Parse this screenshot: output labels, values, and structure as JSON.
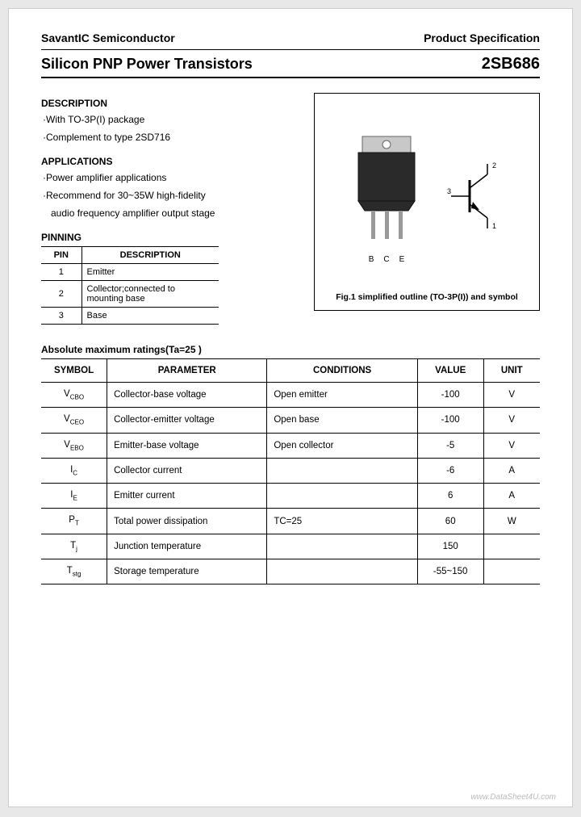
{
  "header": {
    "company": "SavantIC Semiconductor",
    "spec": "Product Specification"
  },
  "title": {
    "left": "Silicon PNP Power Transistors",
    "right": "2SB686"
  },
  "description": {
    "heading": "DESCRIPTION",
    "items": [
      "·With TO-3P(I) package",
      "·Complement to type 2SD716"
    ]
  },
  "applications": {
    "heading": "APPLICATIONS",
    "items": [
      "·Power amplifier applications",
      "·Recommend for 30~35W high-fidelity",
      "audio frequency amplifier output stage"
    ]
  },
  "pinning": {
    "heading": "PINNING",
    "col_pin": "PIN",
    "col_desc": "DESCRIPTION",
    "rows": [
      {
        "pin": "1",
        "desc": "Emitter"
      },
      {
        "pin": "2",
        "desc": "Collector;connected to mounting base"
      },
      {
        "pin": "3",
        "desc": "Base"
      }
    ]
  },
  "figure": {
    "pins": {
      "b": "B",
      "c": "C",
      "e": "E"
    },
    "sym": {
      "n1": "1",
      "n2": "2",
      "n3": "3"
    },
    "caption": "Fig.1 simplified outline (TO-3P(I)) and symbol"
  },
  "ratings": {
    "heading": "Absolute maximum ratings(Ta=25 )",
    "columns": {
      "symbol": "SYMBOL",
      "parameter": "PARAMETER",
      "conditions": "CONDITIONS",
      "value": "VALUE",
      "unit": "UNIT"
    },
    "rows": [
      {
        "sym": "V",
        "sub": "CBO",
        "param": "Collector-base voltage",
        "cond": "Open emitter",
        "val": "-100",
        "unit": "V"
      },
      {
        "sym": "V",
        "sub": "CEO",
        "param": "Collector-emitter voltage",
        "cond": "Open base",
        "val": "-100",
        "unit": "V"
      },
      {
        "sym": "V",
        "sub": "EBO",
        "param": "Emitter-base voltage",
        "cond": "Open collector",
        "val": "-5",
        "unit": "V"
      },
      {
        "sym": "I",
        "sub": "C",
        "param": "Collector current",
        "cond": "",
        "val": "-6",
        "unit": "A"
      },
      {
        "sym": "I",
        "sub": "E",
        "param": "Emitter current",
        "cond": "",
        "val": "6",
        "unit": "A"
      },
      {
        "sym": "P",
        "sub": "T",
        "param": "Total power dissipation",
        "cond": "TC=25",
        "val": "60",
        "unit": "W"
      },
      {
        "sym": "T",
        "sub": "j",
        "param": "Junction temperature",
        "cond": "",
        "val": "150",
        "unit": ""
      },
      {
        "sym": "T",
        "sub": "stg",
        "param": "Storage temperature",
        "cond": "",
        "val": "-55~150",
        "unit": ""
      }
    ]
  },
  "watermark": "www.DataSheet4U.com",
  "colors": {
    "page_bg": "#ffffff",
    "body_bg": "#e8e8e8",
    "text": "#000000",
    "border": "#000000",
    "watermark": "#bbbbbb",
    "package_body": "#2a2a2a",
    "package_tab": "#c8c8c8",
    "lead": "#9a9a9a"
  }
}
